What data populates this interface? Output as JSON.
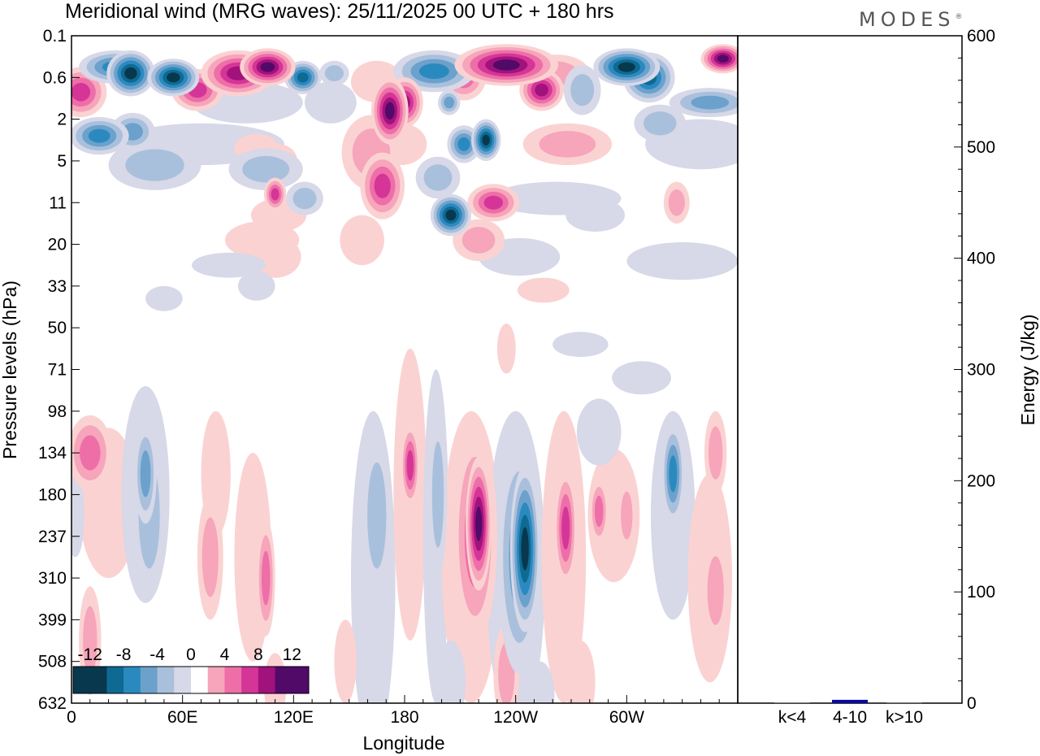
{
  "colors": {
    "neg12": "#08384d",
    "neg10": "#0e6a92",
    "neg8": "#2a8ac0",
    "neg6": "#6ca1cc",
    "neg4": "#a9c0dc",
    "neg2": "#d7d8e8",
    "zero": "#ffffff",
    "pos2": "#fbd2d2",
    "pos4": "#f6a5bb",
    "pos6": "#ee6ea8",
    "pos8": "#d43597",
    "pos10": "#a1127c",
    "pos12": "#520a68",
    "bar": "#0a0aa0"
  },
  "header": {
    "title": "Meridional wind (MRG waves):  25/11/2025  00 UTC  + 180 hrs",
    "brand": "MODES",
    "brand_mark": "®"
  },
  "chart_data": [
    {
      "type": "heatmap",
      "title": "Meridional wind (MRG waves):  25/11/2025  00 UTC  + 180 hrs",
      "xlabel": "Longitude",
      "ylabel": "Pressure levels (hPa)",
      "x_tick_labels": [
        "0",
        "60E",
        "120E",
        "180",
        "120W",
        "60W"
      ],
      "x_tick_degrees": [
        0,
        60,
        120,
        180,
        240,
        300
      ],
      "xlim": [
        0,
        360
      ],
      "y_tick_labels": [
        "0.1",
        "0.6",
        "2",
        "5",
        "11",
        "20",
        "33",
        "50",
        "71",
        "98",
        "134",
        "180",
        "237",
        "310",
        "399",
        "508",
        "632"
      ],
      "colorbar": {
        "levels": [
          -12,
          -10,
          -8,
          -6,
          -4,
          -2,
          0,
          2,
          4,
          6,
          8,
          10,
          12
        ],
        "labels": [
          "-12",
          "-8",
          "-4",
          "0",
          "4",
          "8",
          "12"
        ],
        "label_values": [
          -12,
          -8,
          -4,
          0,
          4,
          8,
          12
        ]
      },
      "features": [
        {
          "lon": 5,
          "lev": 1.35,
          "v": 8,
          "wlon": 14,
          "wlev": 0.6
        },
        {
          "lon": 24,
          "lev": 0.75,
          "v": -8,
          "wlon": 20,
          "wlev": 0.4
        },
        {
          "lon": 32,
          "lev": 0.9,
          "v": -12,
          "wlon": 13,
          "wlev": 0.55
        },
        {
          "lon": 55,
          "lev": 1.0,
          "v": -12,
          "wlon": 14,
          "wlev": 0.45
        },
        {
          "lon": 68,
          "lev": 1.3,
          "v": 8,
          "wlon": 14,
          "wlev": 0.5
        },
        {
          "lon": 90,
          "lev": 0.9,
          "v": 10,
          "wlon": 20,
          "wlev": 0.55
        },
        {
          "lon": 106,
          "lev": 0.75,
          "v": 12,
          "wlon": 15,
          "wlev": 0.45
        },
        {
          "lon": 125,
          "lev": 1.0,
          "v": -10,
          "wlon": 10,
          "wlev": 0.4
        },
        {
          "lon": 15,
          "lev": 2.4,
          "v": -8,
          "wlon": 16,
          "wlev": 0.45
        },
        {
          "lon": 33,
          "lev": 2.3,
          "v": -6,
          "wlon": 12,
          "wlev": 0.45
        },
        {
          "lon": 45,
          "lev": 3.1,
          "v": -4,
          "wlon": 25,
          "wlev": 0.6
        },
        {
          "lon": 105,
          "lev": 3.2,
          "v": -4,
          "wlon": 20,
          "wlev": 0.5
        },
        {
          "lon": 95,
          "lev": 1.6,
          "v": -2,
          "wlon": 30,
          "wlev": 0.5
        },
        {
          "lon": 70,
          "lev": 2.6,
          "v": -2,
          "wlon": 45,
          "wlev": 0.5
        },
        {
          "lon": 100,
          "lev": 2.7,
          "v": 2,
          "wlon": 12,
          "wlev": 0.35
        },
        {
          "lon": 112,
          "lev": 3.0,
          "v": 2,
          "wlon": 10,
          "wlev": 0.4
        },
        {
          "lon": 112,
          "lev": 4.3,
          "v": 2,
          "wlon": 15,
          "wlev": 0.4
        },
        {
          "lon": 103,
          "lev": 4.9,
          "v": 2,
          "wlon": 20,
          "wlev": 0.45
        },
        {
          "lon": 110,
          "lev": 5.3,
          "v": 2,
          "wlon": 14,
          "wlev": 0.5
        },
        {
          "lon": 110,
          "lev": 3.8,
          "v": 8,
          "wlon": 6,
          "wlev": 0.4
        },
        {
          "lon": 126,
          "lev": 3.9,
          "v": -4,
          "wlon": 10,
          "wlev": 0.4
        },
        {
          "lon": 85,
          "lev": 5.5,
          "v": -2,
          "wlon": 20,
          "wlev": 0.3
        },
        {
          "lon": 142,
          "lev": 0.9,
          "v": -4,
          "wlon": 8,
          "wlev": 0.3
        },
        {
          "lon": 140,
          "lev": 1.6,
          "v": -2,
          "wlon": 14,
          "wlev": 0.5
        },
        {
          "lon": 165,
          "lev": 1.1,
          "v": 2,
          "wlon": 14,
          "wlev": 0.5
        },
        {
          "lon": 172,
          "lev": 1.8,
          "v": 12,
          "wlon": 10,
          "wlev": 0.8
        },
        {
          "lon": 180,
          "lev": 1.6,
          "v": 10,
          "wlon": 10,
          "wlev": 0.6
        },
        {
          "lon": 168,
          "lev": 3.6,
          "v": 8,
          "wlon": 12,
          "wlev": 0.8
        },
        {
          "lon": 162,
          "lev": 2.8,
          "v": 4,
          "wlon": 16,
          "wlev": 0.9
        },
        {
          "lon": 157,
          "lev": 4.9,
          "v": 2,
          "wlon": 12,
          "wlev": 0.6
        },
        {
          "lon": 178,
          "lev": 2.6,
          "v": 2,
          "wlon": 14,
          "wlev": 0.5
        },
        {
          "lon": 196,
          "lev": 0.85,
          "v": -8,
          "wlon": 22,
          "wlev": 0.5
        },
        {
          "lon": 203,
          "lev": 0.85,
          "v": -6,
          "wlon": 13,
          "wlev": 0.3
        },
        {
          "lon": 212,
          "lev": 1.0,
          "v": 6,
          "wlon": 12,
          "wlev": 0.55
        },
        {
          "lon": 204,
          "lev": 1.6,
          "v": -6,
          "wlon": 6,
          "wlev": 0.3
        },
        {
          "lon": 212,
          "lev": 2.6,
          "v": -8,
          "wlon": 9,
          "wlev": 0.45
        },
        {
          "lon": 224,
          "lev": 2.5,
          "v": -12,
          "wlon": 8,
          "wlev": 0.5
        },
        {
          "lon": 198,
          "lev": 3.4,
          "v": -4,
          "wlon": 12,
          "wlev": 0.5
        },
        {
          "lon": 205,
          "lev": 4.3,
          "v": -12,
          "wlon": 11,
          "wlev": 0.5
        },
        {
          "lon": 228,
          "lev": 4.0,
          "v": 8,
          "wlon": 14,
          "wlev": 0.45
        },
        {
          "lon": 220,
          "lev": 4.9,
          "v": 4,
          "wlon": 14,
          "wlev": 0.5
        },
        {
          "lon": 242,
          "lev": 5.3,
          "v": -2,
          "wlon": 22,
          "wlev": 0.45
        },
        {
          "lon": 235,
          "lev": 0.7,
          "v": 12,
          "wlon": 28,
          "wlev": 0.5
        },
        {
          "lon": 254,
          "lev": 1.3,
          "v": 10,
          "wlon": 12,
          "wlev": 0.5
        },
        {
          "lon": 262,
          "lev": 0.9,
          "v": 4,
          "wlon": 18,
          "wlev": 0.45
        },
        {
          "lon": 268,
          "lev": 2.6,
          "v": 4,
          "wlon": 24,
          "wlev": 0.5
        },
        {
          "lon": 262,
          "lev": 3.9,
          "v": -2,
          "wlon": 35,
          "wlev": 0.4
        },
        {
          "lon": 276,
          "lev": 1.3,
          "v": -4,
          "wlon": 10,
          "wlev": 0.6
        },
        {
          "lon": 300,
          "lev": 0.75,
          "v": -12,
          "wlon": 18,
          "wlev": 0.45
        },
        {
          "lon": 312,
          "lev": 1.0,
          "v": -10,
          "wlon": 14,
          "wlev": 0.6
        },
        {
          "lon": 352,
          "lev": 0.55,
          "v": 12,
          "wlon": 12,
          "wlev": 0.35
        },
        {
          "lon": 345,
          "lev": 1.6,
          "v": -6,
          "wlon": 22,
          "wlev": 0.35
        },
        {
          "lon": 318,
          "lev": 2.1,
          "v": -4,
          "wlon": 14,
          "wlev": 0.45
        },
        {
          "lon": 340,
          "lev": 2.6,
          "v": -2,
          "wlon": 30,
          "wlev": 0.6
        },
        {
          "lon": 327,
          "lev": 4.0,
          "v": 4,
          "wlon": 7,
          "wlev": 0.5
        },
        {
          "lon": 330,
          "lev": 5.4,
          "v": -2,
          "wlon": 30,
          "wlev": 0.45
        },
        {
          "lon": 283,
          "lev": 4.3,
          "v": -2,
          "wlon": 16,
          "wlev": 0.4
        },
        {
          "lon": 255,
          "lev": 6.1,
          "v": 2,
          "wlon": 14,
          "wlev": 0.3
        },
        {
          "lon": 100,
          "lev": 6.0,
          "v": -2,
          "wlon": 10,
          "wlev": 0.35
        },
        {
          "lon": 50,
          "lev": 6.3,
          "v": -2,
          "wlon": 10,
          "wlev": 0.3
        },
        {
          "lon": 275,
          "lev": 7.4,
          "v": -2,
          "wlon": 15,
          "wlev": 0.3
        },
        {
          "lon": 308,
          "lev": 8.2,
          "v": -2,
          "wlon": 16,
          "wlev": 0.4
        },
        {
          "lon": 10,
          "lev": 10.0,
          "v": 6,
          "wlon": 12,
          "wlev": 0.9
        },
        {
          "lon": 20,
          "lev": 11.2,
          "v": 2,
          "wlon": 16,
          "wlev": 1.8
        },
        {
          "lon": 10,
          "lev": 14.5,
          "v": 4,
          "wlon": 6,
          "wlev": 1.3
        },
        {
          "lon": 2,
          "lev": 11.5,
          "v": -2,
          "wlon": 5,
          "wlev": 1.0
        },
        {
          "lon": 40,
          "lev": 10.5,
          "v": -6,
          "wlon": 6,
          "wlev": 1.2
        },
        {
          "lon": 42,
          "lev": 11.5,
          "v": -4,
          "wlon": 9,
          "wlev": 2.0
        },
        {
          "lon": 40,
          "lev": 11.0,
          "v": -2,
          "wlon": 13,
          "wlev": 2.6
        },
        {
          "lon": 75,
          "lev": 12.5,
          "v": 4,
          "wlon": 7,
          "wlev": 1.5
        },
        {
          "lon": 78,
          "lev": 10.5,
          "v": 2,
          "wlon": 8,
          "wlev": 1.5
        },
        {
          "lon": 105,
          "lev": 13.0,
          "v": 6,
          "wlon": 5,
          "wlev": 1.4
        },
        {
          "lon": 98,
          "lev": 12.5,
          "v": 2,
          "wlon": 10,
          "wlev": 2.5
        },
        {
          "lon": 165,
          "lev": 11.5,
          "v": -4,
          "wlon": 8,
          "wlev": 2.0
        },
        {
          "lon": 163,
          "lev": 13.0,
          "v": -2,
          "wlon": 12,
          "wlev": 4.0
        },
        {
          "lon": 183,
          "lev": 10.3,
          "v": 8,
          "wlon": 5,
          "wlev": 1.0
        },
        {
          "lon": 183,
          "lev": 11.0,
          "v": 2,
          "wlon": 9,
          "wlev": 3.5
        },
        {
          "lon": 198,
          "lev": 11.0,
          "v": -4,
          "wlon": 5,
          "wlev": 2.0
        },
        {
          "lon": 197,
          "lev": 12.0,
          "v": -2,
          "wlon": 7,
          "wlev": 4.0
        },
        {
          "lon": 220,
          "lev": 11.7,
          "v": 12,
          "wlon": 7,
          "wlev": 1.6
        },
        {
          "lon": 218,
          "lev": 12.0,
          "v": 6,
          "wlon": 12,
          "wlev": 2.6
        },
        {
          "lon": 216,
          "lev": 12.5,
          "v": 2,
          "wlon": 16,
          "wlev": 3.5
        },
        {
          "lon": 245,
          "lev": 12.3,
          "v": -12,
          "wlon": 8,
          "wlev": 2.0
        },
        {
          "lon": 242,
          "lev": 12.5,
          "v": -6,
          "wlon": 12,
          "wlev": 2.8
        },
        {
          "lon": 240,
          "lev": 12.8,
          "v": -2,
          "wlon": 16,
          "wlev": 3.8
        },
        {
          "lon": 267,
          "lev": 11.8,
          "v": 8,
          "wlon": 6,
          "wlev": 1.4
        },
        {
          "lon": 266,
          "lev": 12.5,
          "v": 2,
          "wlon": 12,
          "wlev": 3.5
        },
        {
          "lon": 285,
          "lev": 11.4,
          "v": 6,
          "wlon": 5,
          "wlev": 0.8
        },
        {
          "lon": 300,
          "lev": 11.5,
          "v": 4,
          "wlon": 5,
          "wlev": 0.9
        },
        {
          "lon": 293,
          "lev": 11.5,
          "v": 2,
          "wlon": 14,
          "wlev": 1.6
        },
        {
          "lon": 285,
          "lev": 9.5,
          "v": -2,
          "wlon": 12,
          "wlev": 0.8
        },
        {
          "lon": 325,
          "lev": 10.5,
          "v": -8,
          "wlon": 6,
          "wlev": 1.2
        },
        {
          "lon": 325,
          "lev": 11.5,
          "v": -2,
          "wlon": 12,
          "wlev": 2.5
        },
        {
          "lon": 348,
          "lev": 10.0,
          "v": 4,
          "wlon": 6,
          "wlev": 1.0
        },
        {
          "lon": 348,
          "lev": 13.3,
          "v": 4,
          "wlon": 7,
          "wlev": 1.3
        },
        {
          "lon": 345,
          "lev": 13.0,
          "v": 2,
          "wlon": 12,
          "wlev": 2.5
        },
        {
          "lon": 235,
          "lev": 7.5,
          "v": 2,
          "wlon": 5,
          "wlev": 0.6
        },
        {
          "lon": 182,
          "lev": 8.5,
          "v": 2,
          "wlon": 5,
          "wlev": 0.6
        },
        {
          "lon": 235,
          "lev": 15.3,
          "v": 4,
          "wlon": 7,
          "wlev": 1.2
        },
        {
          "lon": 253,
          "lev": 15.8,
          "v": -2,
          "wlon": 8,
          "wlev": 0.8
        },
        {
          "lon": 275,
          "lev": 15.5,
          "v": 2,
          "wlon": 8,
          "wlev": 1.0
        },
        {
          "lon": 205,
          "lev": 15.5,
          "v": -2,
          "wlon": 8,
          "wlev": 1.0
        },
        {
          "lon": 148,
          "lev": 15.0,
          "v": 2,
          "wlon": 6,
          "wlev": 1.0
        },
        {
          "lon": 110,
          "lev": 15.6,
          "v": 2,
          "wlon": 6,
          "wlev": 0.8
        }
      ]
    },
    {
      "type": "bar",
      "categories": [
        "k<4",
        "4-10",
        "k>10"
      ],
      "values": [
        0.4,
        3.0,
        0.3
      ],
      "ylabel": "Energy (J/kg)",
      "ylim": [
        0,
        600
      ],
      "ytick_labels": [
        "0",
        "100",
        "200",
        "300",
        "400",
        "500",
        "600"
      ],
      "ytick_values": [
        0,
        100,
        200,
        300,
        400,
        500,
        600
      ]
    }
  ]
}
